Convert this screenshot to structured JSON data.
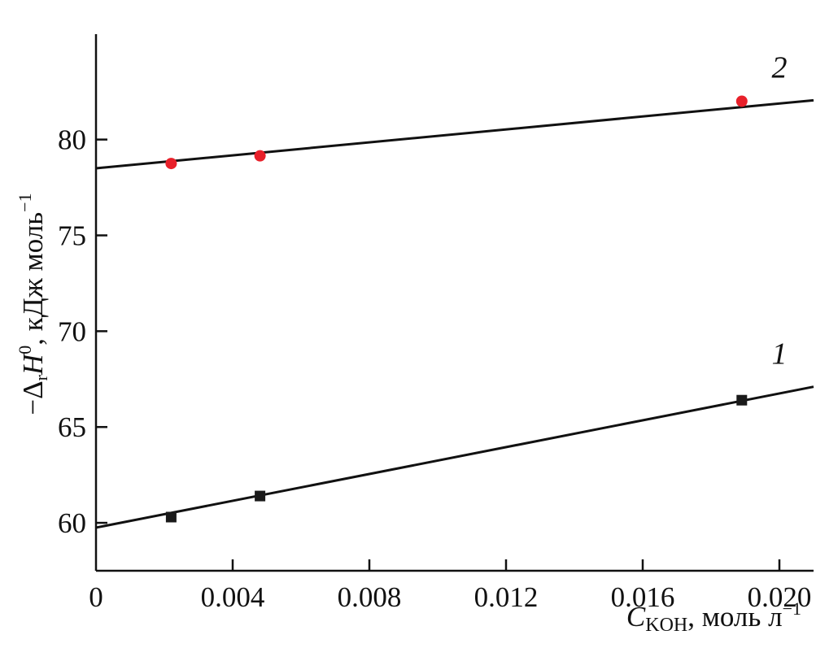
{
  "chart_data": {
    "type": "scatter",
    "title": "",
    "xlabel": {
      "symbol": "C",
      "subscript": "KOH",
      "rest": ", моль л",
      "sup": "−1"
    },
    "ylabel": {
      "prefix": "−Δ",
      "sub": "r",
      "symbol": "H",
      "sup": "0",
      "rest": ", кДж моль",
      "sup2": "−1"
    },
    "xlim": [
      0,
      0.021
    ],
    "ylim": [
      57.5,
      85.5
    ],
    "x_ticks": [
      {
        "value": 0,
        "label": "0"
      },
      {
        "value": 0.004,
        "label": "0.004"
      },
      {
        "value": 0.008,
        "label": "0.008"
      },
      {
        "value": 0.012,
        "label": "0.012"
      },
      {
        "value": 0.016,
        "label": "0.016"
      },
      {
        "value": 0.02,
        "label": "0.020"
      }
    ],
    "y_ticks": [
      {
        "value": 60,
        "label": "60"
      },
      {
        "value": 65,
        "label": "65"
      },
      {
        "value": 70,
        "label": "70"
      },
      {
        "value": 75,
        "label": "75"
      },
      {
        "value": 80,
        "label": "80"
      }
    ],
    "grid": false,
    "series": [
      {
        "name": "1",
        "marker": "square",
        "color": "#1a1a1a",
        "points": [
          [
            0.0022,
            60.3
          ],
          [
            0.0048,
            61.4
          ],
          [
            0.0189,
            66.4
          ]
        ],
        "fit_line": [
          [
            0.0,
            59.75
          ],
          [
            0.021,
            67.1
          ]
        ]
      },
      {
        "name": "2",
        "marker": "circle",
        "color": "#e8202a",
        "points": [
          [
            0.0022,
            78.75
          ],
          [
            0.0048,
            79.15
          ],
          [
            0.0189,
            82.0
          ]
        ],
        "fit_line": [
          [
            0.0,
            78.5
          ],
          [
            0.021,
            82.05
          ]
        ]
      }
    ]
  }
}
